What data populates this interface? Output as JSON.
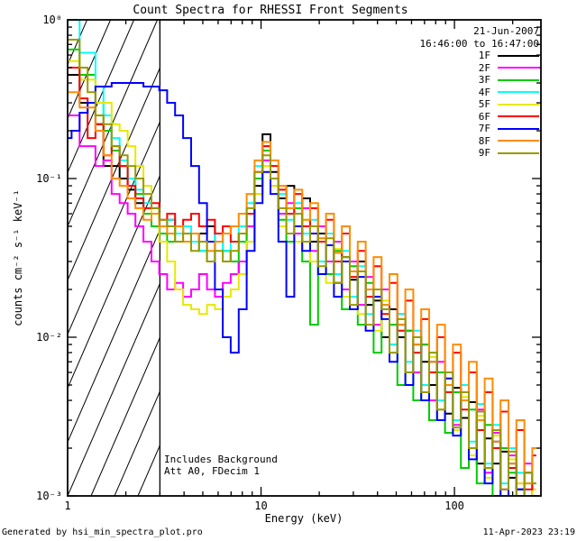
{
  "title": "Count Spectra for RHESSI Front Segments",
  "annotations": {
    "date": "21-Jun-2007",
    "time_range": "16:46:00 to 16:47:00",
    "note_line1": "Includes Background",
    "note_line2": "Att A0, FDecim 1"
  },
  "footer": {
    "left": "Generated by hsi_min_spectra_plot.pro",
    "right": "11-Apr-2023 23:19"
  },
  "chart_data": {
    "type": "line",
    "title": "Count Spectra for RHESSI Front Segments",
    "xlabel": "Energy (keV)",
    "ylabel": "counts cm⁻² s⁻¹ keV⁻¹",
    "xscale": "log",
    "yscale": "log",
    "xlim": [
      1,
      280
    ],
    "ylim": [
      0.001,
      1
    ],
    "grid": false,
    "legend_position": "top-right-inside",
    "background": "#ffffff",
    "axis_color": "#000000",
    "x_ticks": {
      "values": [
        1,
        10,
        100
      ],
      "labels": [
        "1",
        "10",
        "100"
      ]
    },
    "y_ticks": {
      "values": [
        1,
        0.1,
        0.01,
        0.001
      ],
      "labels": [
        "10⁰",
        "10⁻¹",
        "10⁻²",
        "10⁻³"
      ]
    },
    "hatch_region": {
      "xmin": 1,
      "xmax": 3
    },
    "energies_keV": [
      1.0,
      1.1,
      1.21,
      1.33,
      1.46,
      1.61,
      1.77,
      1.95,
      2.14,
      2.35,
      2.59,
      2.84,
      3.12,
      3.43,
      3.77,
      4.15,
      4.56,
      5.01,
      5.51,
      6.05,
      6.65,
      7.31,
      8.04,
      8.83,
      9.71,
      10.67,
      11.73,
      12.89,
      14.17,
      15.57,
      17.11,
      18.81,
      20.67,
      22.72,
      24.97,
      27.44,
      30.16,
      33.15,
      36.44,
      40.04,
      44.01,
      48.37,
      53.16,
      58.43,
      64.22,
      70.58,
      77.57,
      85.26,
      93.7,
      103.0,
      113.2,
      124.4,
      136.7,
      150.3,
      165.1,
      181.5,
      199.5,
      219.2,
      241.0,
      264.8
    ],
    "series": [
      {
        "name": "1F",
        "color": "#000000",
        "values": [
          0.45,
          0.45,
          0.3,
          0.3,
          0.22,
          0.12,
          0.12,
          0.1,
          0.085,
          0.07,
          0.06,
          0.065,
          0.05,
          0.055,
          0.045,
          0.05,
          0.04,
          0.045,
          0.05,
          0.04,
          0.035,
          0.03,
          0.025,
          0.04,
          0.09,
          0.19,
          0.11,
          0.075,
          0.09,
          0.06,
          0.075,
          0.04,
          0.045,
          0.045,
          0.022,
          0.032,
          0.023,
          0.03,
          0.016,
          0.017,
          0.01,
          0.015,
          0.01,
          0.006,
          0.01,
          0.007,
          0.005,
          0.006,
          0.0033,
          0.0048,
          0.0031,
          0.0039,
          0.0016,
          0.0023,
          0.0016,
          0.0019,
          0.0013,
          0.0011,
          0.0014,
          0.001
        ]
      },
      {
        "name": "2F",
        "color": "#ff00ff",
        "values": [
          0.25,
          0.25,
          0.16,
          0.16,
          0.12,
          0.13,
          0.08,
          0.07,
          0.06,
          0.05,
          0.04,
          0.03,
          0.025,
          0.02,
          0.022,
          0.018,
          0.02,
          0.025,
          0.02,
          0.018,
          0.022,
          0.025,
          0.03,
          0.05,
          0.08,
          0.13,
          0.09,
          0.06,
          0.07,
          0.045,
          0.065,
          0.035,
          0.05,
          0.03,
          0.04,
          0.02,
          0.03,
          0.016,
          0.024,
          0.012,
          0.02,
          0.009,
          0.014,
          0.011,
          0.006,
          0.009,
          0.004,
          0.007,
          0.005,
          0.0028,
          0.0045,
          0.002,
          0.0035,
          0.0014,
          0.0025,
          0.0011,
          0.0018,
          0.0012,
          0.0016,
          0.001
        ]
      },
      {
        "name": "3F",
        "color": "#00cc00",
        "values": [
          0.65,
          0.65,
          0.45,
          0.45,
          0.3,
          0.2,
          0.15,
          0.12,
          0.1,
          0.08,
          0.06,
          0.05,
          0.045,
          0.04,
          0.05,
          0.045,
          0.04,
          0.035,
          0.03,
          0.04,
          0.035,
          0.03,
          0.04,
          0.06,
          0.1,
          0.15,
          0.1,
          0.055,
          0.04,
          0.065,
          0.03,
          0.012,
          0.04,
          0.025,
          0.035,
          0.015,
          0.028,
          0.012,
          0.022,
          0.008,
          0.016,
          0.012,
          0.005,
          0.011,
          0.004,
          0.009,
          0.003,
          0.006,
          0.0025,
          0.0045,
          0.0015,
          0.0035,
          0.0012,
          0.0028,
          0.001,
          0.002,
          0.0014,
          0.001,
          0.0012,
          0.001
        ]
      },
      {
        "name": "4F",
        "color": "#00ffff",
        "values": [
          1.0,
          1.0,
          0.62,
          0.62,
          0.38,
          0.25,
          0.18,
          0.13,
          0.1,
          0.085,
          0.07,
          0.06,
          0.05,
          0.055,
          0.045,
          0.05,
          0.04,
          0.035,
          0.04,
          0.045,
          0.035,
          0.04,
          0.05,
          0.07,
          0.12,
          0.16,
          0.12,
          0.08,
          0.055,
          0.07,
          0.045,
          0.055,
          0.03,
          0.045,
          0.025,
          0.035,
          0.018,
          0.028,
          0.014,
          0.02,
          0.016,
          0.009,
          0.014,
          0.007,
          0.011,
          0.005,
          0.008,
          0.004,
          0.006,
          0.003,
          0.005,
          0.0022,
          0.0038,
          0.0016,
          0.0028,
          0.0012,
          0.002,
          0.0014,
          0.001,
          0.0012
        ]
      },
      {
        "name": "5F",
        "color": "#e8e800",
        "values": [
          0.55,
          0.55,
          0.42,
          0.42,
          0.3,
          0.3,
          0.22,
          0.2,
          0.16,
          0.12,
          0.09,
          0.06,
          0.04,
          0.03,
          0.02,
          0.016,
          0.015,
          0.014,
          0.016,
          0.015,
          0.018,
          0.02,
          0.025,
          0.04,
          0.08,
          0.12,
          0.09,
          0.05,
          0.065,
          0.04,
          0.055,
          0.03,
          0.042,
          0.022,
          0.036,
          0.018,
          0.026,
          0.014,
          0.02,
          0.011,
          0.017,
          0.008,
          0.013,
          0.006,
          0.01,
          0.0045,
          0.0075,
          0.0035,
          0.0055,
          0.0026,
          0.0042,
          0.0018,
          0.0032,
          0.0013,
          0.0024,
          0.001,
          0.0017,
          0.0012,
          0.0009,
          0.0011
        ]
      },
      {
        "name": "6F",
        "color": "#ff0000",
        "values": [
          0.5,
          0.5,
          0.32,
          0.18,
          0.22,
          0.14,
          0.16,
          0.12,
          0.09,
          0.075,
          0.065,
          0.07,
          0.055,
          0.06,
          0.05,
          0.055,
          0.06,
          0.05,
          0.055,
          0.045,
          0.05,
          0.04,
          0.045,
          0.06,
          0.11,
          0.16,
          0.12,
          0.085,
          0.06,
          0.08,
          0.05,
          0.065,
          0.04,
          0.055,
          0.03,
          0.045,
          0.024,
          0.035,
          0.018,
          0.028,
          0.014,
          0.022,
          0.011,
          0.017,
          0.008,
          0.013,
          0.006,
          0.01,
          0.0045,
          0.008,
          0.0035,
          0.006,
          0.0026,
          0.0045,
          0.002,
          0.0034,
          0.0015,
          0.0026,
          0.0011,
          0.0018
        ]
      },
      {
        "name": "7F",
        "color": "#0000ff",
        "values": [
          0.18,
          0.2,
          0.26,
          0.3,
          0.38,
          0.38,
          0.4,
          0.4,
          0.4,
          0.4,
          0.38,
          0.38,
          0.36,
          0.3,
          0.25,
          0.18,
          0.12,
          0.07,
          0.04,
          0.02,
          0.01,
          0.008,
          0.015,
          0.035,
          0.07,
          0.11,
          0.08,
          0.04,
          0.018,
          0.05,
          0.035,
          0.045,
          0.025,
          0.038,
          0.018,
          0.03,
          0.015,
          0.024,
          0.011,
          0.018,
          0.013,
          0.007,
          0.012,
          0.005,
          0.009,
          0.004,
          0.007,
          0.003,
          0.0055,
          0.0024,
          0.004,
          0.0017,
          0.003,
          0.0012,
          0.0022,
          0.0009,
          0.0016,
          0.0011,
          0.0008,
          0.001
        ]
      },
      {
        "name": "8F",
        "color": "#ff8c00",
        "values": [
          0.35,
          0.35,
          0.28,
          0.28,
          0.2,
          0.14,
          0.1,
          0.09,
          0.075,
          0.065,
          0.055,
          0.06,
          0.05,
          0.045,
          0.05,
          0.04,
          0.045,
          0.04,
          0.035,
          0.04,
          0.045,
          0.05,
          0.06,
          0.08,
          0.13,
          0.17,
          0.13,
          0.09,
          0.065,
          0.085,
          0.055,
          0.07,
          0.042,
          0.06,
          0.034,
          0.05,
          0.026,
          0.04,
          0.02,
          0.032,
          0.016,
          0.025,
          0.012,
          0.02,
          0.009,
          0.015,
          0.007,
          0.012,
          0.005,
          0.009,
          0.004,
          0.007,
          0.003,
          0.0055,
          0.0022,
          0.004,
          0.0016,
          0.003,
          0.0012,
          0.002
        ]
      },
      {
        "name": "9F",
        "color": "#999900",
        "values": [
          0.75,
          0.75,
          0.5,
          0.35,
          0.25,
          0.22,
          0.16,
          0.14,
          0.12,
          0.1,
          0.08,
          0.065,
          0.055,
          0.05,
          0.04,
          0.045,
          0.035,
          0.04,
          0.03,
          0.035,
          0.03,
          0.035,
          0.045,
          0.065,
          0.11,
          0.14,
          0.1,
          0.065,
          0.045,
          0.06,
          0.04,
          0.05,
          0.028,
          0.042,
          0.022,
          0.032,
          0.016,
          0.026,
          0.012,
          0.02,
          0.015,
          0.008,
          0.013,
          0.006,
          0.01,
          0.0045,
          0.008,
          0.0035,
          0.006,
          0.0027,
          0.0045,
          0.002,
          0.0034,
          0.0015,
          0.0026,
          0.0011,
          0.0019,
          0.0009,
          0.0014,
          0.0012
        ]
      }
    ]
  }
}
